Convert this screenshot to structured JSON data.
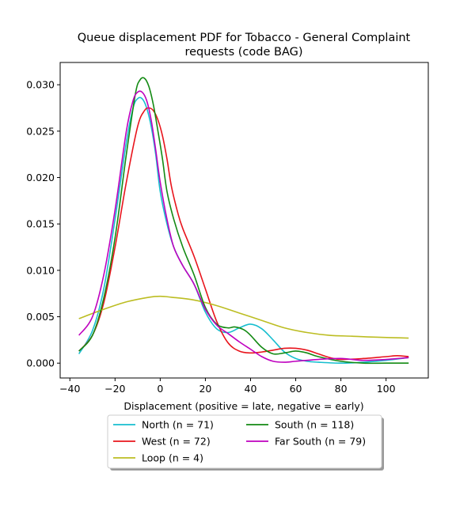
{
  "chart_data": {
    "type": "line",
    "title_lines": [
      "Queue displacement PDF for Tobacco - General Complaint",
      "requests (code BAG)"
    ],
    "xlabel": "Displacement (positive = late, negative = early)",
    "ylabel": "",
    "xlim": [
      -44.3,
      118.7
    ],
    "ylim": [
      -0.0016,
      0.0324
    ],
    "x_ticks": [
      -40,
      -20,
      0,
      20,
      40,
      60,
      80,
      100
    ],
    "x_tick_labels": [
      "−40",
      "−20",
      "0",
      "20",
      "40",
      "60",
      "80",
      "100"
    ],
    "y_ticks": [
      0.0,
      0.005,
      0.01,
      0.015,
      0.02,
      0.025,
      0.03
    ],
    "y_tick_labels": [
      "0.000",
      "0.005",
      "0.010",
      "0.015",
      "0.020",
      "0.025",
      "0.030"
    ],
    "grid": false,
    "legend_placement": "below-center",
    "legend_columns": 2,
    "series": [
      {
        "name": "North (n = 71)",
        "color": "#17becf",
        "x": [
          -36,
          -30,
          -25,
          -20,
          -15,
          -12,
          -10,
          -8,
          -6,
          -4,
          -2,
          0,
          3,
          6,
          10,
          15,
          20,
          25,
          30,
          35,
          40,
          45,
          50,
          55,
          60,
          65,
          70,
          80,
          90,
          100,
          110
        ],
        "y": [
          0.001,
          0.0035,
          0.008,
          0.0155,
          0.0238,
          0.0275,
          0.0285,
          0.0285,
          0.0275,
          0.0255,
          0.0225,
          0.0185,
          0.015,
          0.0125,
          0.0105,
          0.0085,
          0.0055,
          0.0037,
          0.0033,
          0.0038,
          0.0042,
          0.0037,
          0.0025,
          0.0012,
          0.0005,
          0.0002,
          0.0001,
          0.0,
          0.0001,
          0.0003,
          0.0006
        ]
      },
      {
        "name": "West (n = 72)",
        "color": "#e8141c",
        "x": [
          -36,
          -30,
          -25,
          -20,
          -15,
          -10,
          -7,
          -5,
          -3,
          -1,
          1,
          3,
          5,
          8,
          10,
          15,
          20,
          25,
          30,
          35,
          40,
          45,
          50,
          55,
          60,
          65,
          70,
          75,
          80,
          90,
          100,
          105,
          110
        ],
        "y": [
          0.0013,
          0.003,
          0.0065,
          0.0125,
          0.0195,
          0.0255,
          0.0272,
          0.0275,
          0.0272,
          0.0262,
          0.0245,
          0.022,
          0.019,
          0.016,
          0.0145,
          0.0115,
          0.008,
          0.0045,
          0.0022,
          0.0013,
          0.0011,
          0.0012,
          0.0014,
          0.0016,
          0.0016,
          0.0014,
          0.001,
          0.0006,
          0.0004,
          0.0005,
          0.0007,
          0.0008,
          0.0007
        ]
      },
      {
        "name": "Loop (n = 4)",
        "color": "#bcbd22",
        "x": [
          -36,
          -25,
          -15,
          -5,
          0,
          5,
          15,
          25,
          35,
          45,
          55,
          65,
          75,
          85,
          95,
          110
        ],
        "y": [
          0.0048,
          0.0058,
          0.0066,
          0.0071,
          0.0072,
          0.0071,
          0.0068,
          0.0062,
          0.0054,
          0.0046,
          0.0038,
          0.0033,
          0.003,
          0.0029,
          0.0028,
          0.0027
        ]
      },
      {
        "name": "South (n = 118)",
        "color": "#138a13",
        "x": [
          -36,
          -30,
          -25,
          -20,
          -15,
          -11,
          -9,
          -7,
          -5,
          -3,
          -1,
          1,
          3,
          6,
          10,
          15,
          20,
          25,
          30,
          33,
          37,
          40,
          45,
          50,
          55,
          60,
          65,
          70,
          80,
          90,
          100,
          110
        ],
        "y": [
          0.0013,
          0.003,
          0.007,
          0.0135,
          0.0225,
          0.029,
          0.0305,
          0.0307,
          0.0298,
          0.0278,
          0.025,
          0.022,
          0.0185,
          0.0155,
          0.0125,
          0.0095,
          0.006,
          0.0042,
          0.0038,
          0.0039,
          0.0036,
          0.003,
          0.0017,
          0.001,
          0.0011,
          0.0013,
          0.0011,
          0.0007,
          0.0002,
          0.0,
          0.0,
          0.0
        ]
      },
      {
        "name": "Far South (n = 79)",
        "color": "#bf00bf",
        "x": [
          -36,
          -30,
          -25,
          -20,
          -15,
          -12,
          -10,
          -8,
          -6,
          -4,
          -2,
          0,
          3,
          6,
          10,
          15,
          20,
          25,
          30,
          35,
          40,
          45,
          50,
          55,
          60,
          70,
          80,
          90,
          100,
          110
        ],
        "y": [
          0.003,
          0.005,
          0.0095,
          0.0165,
          0.025,
          0.0283,
          0.0292,
          0.0292,
          0.0283,
          0.0262,
          0.023,
          0.0195,
          0.0155,
          0.0125,
          0.0105,
          0.0085,
          0.0058,
          0.0041,
          0.0032,
          0.0023,
          0.0015,
          0.0007,
          0.0002,
          0.0001,
          0.0002,
          0.0004,
          0.0005,
          0.0003,
          0.0004,
          0.0006
        ]
      }
    ]
  }
}
